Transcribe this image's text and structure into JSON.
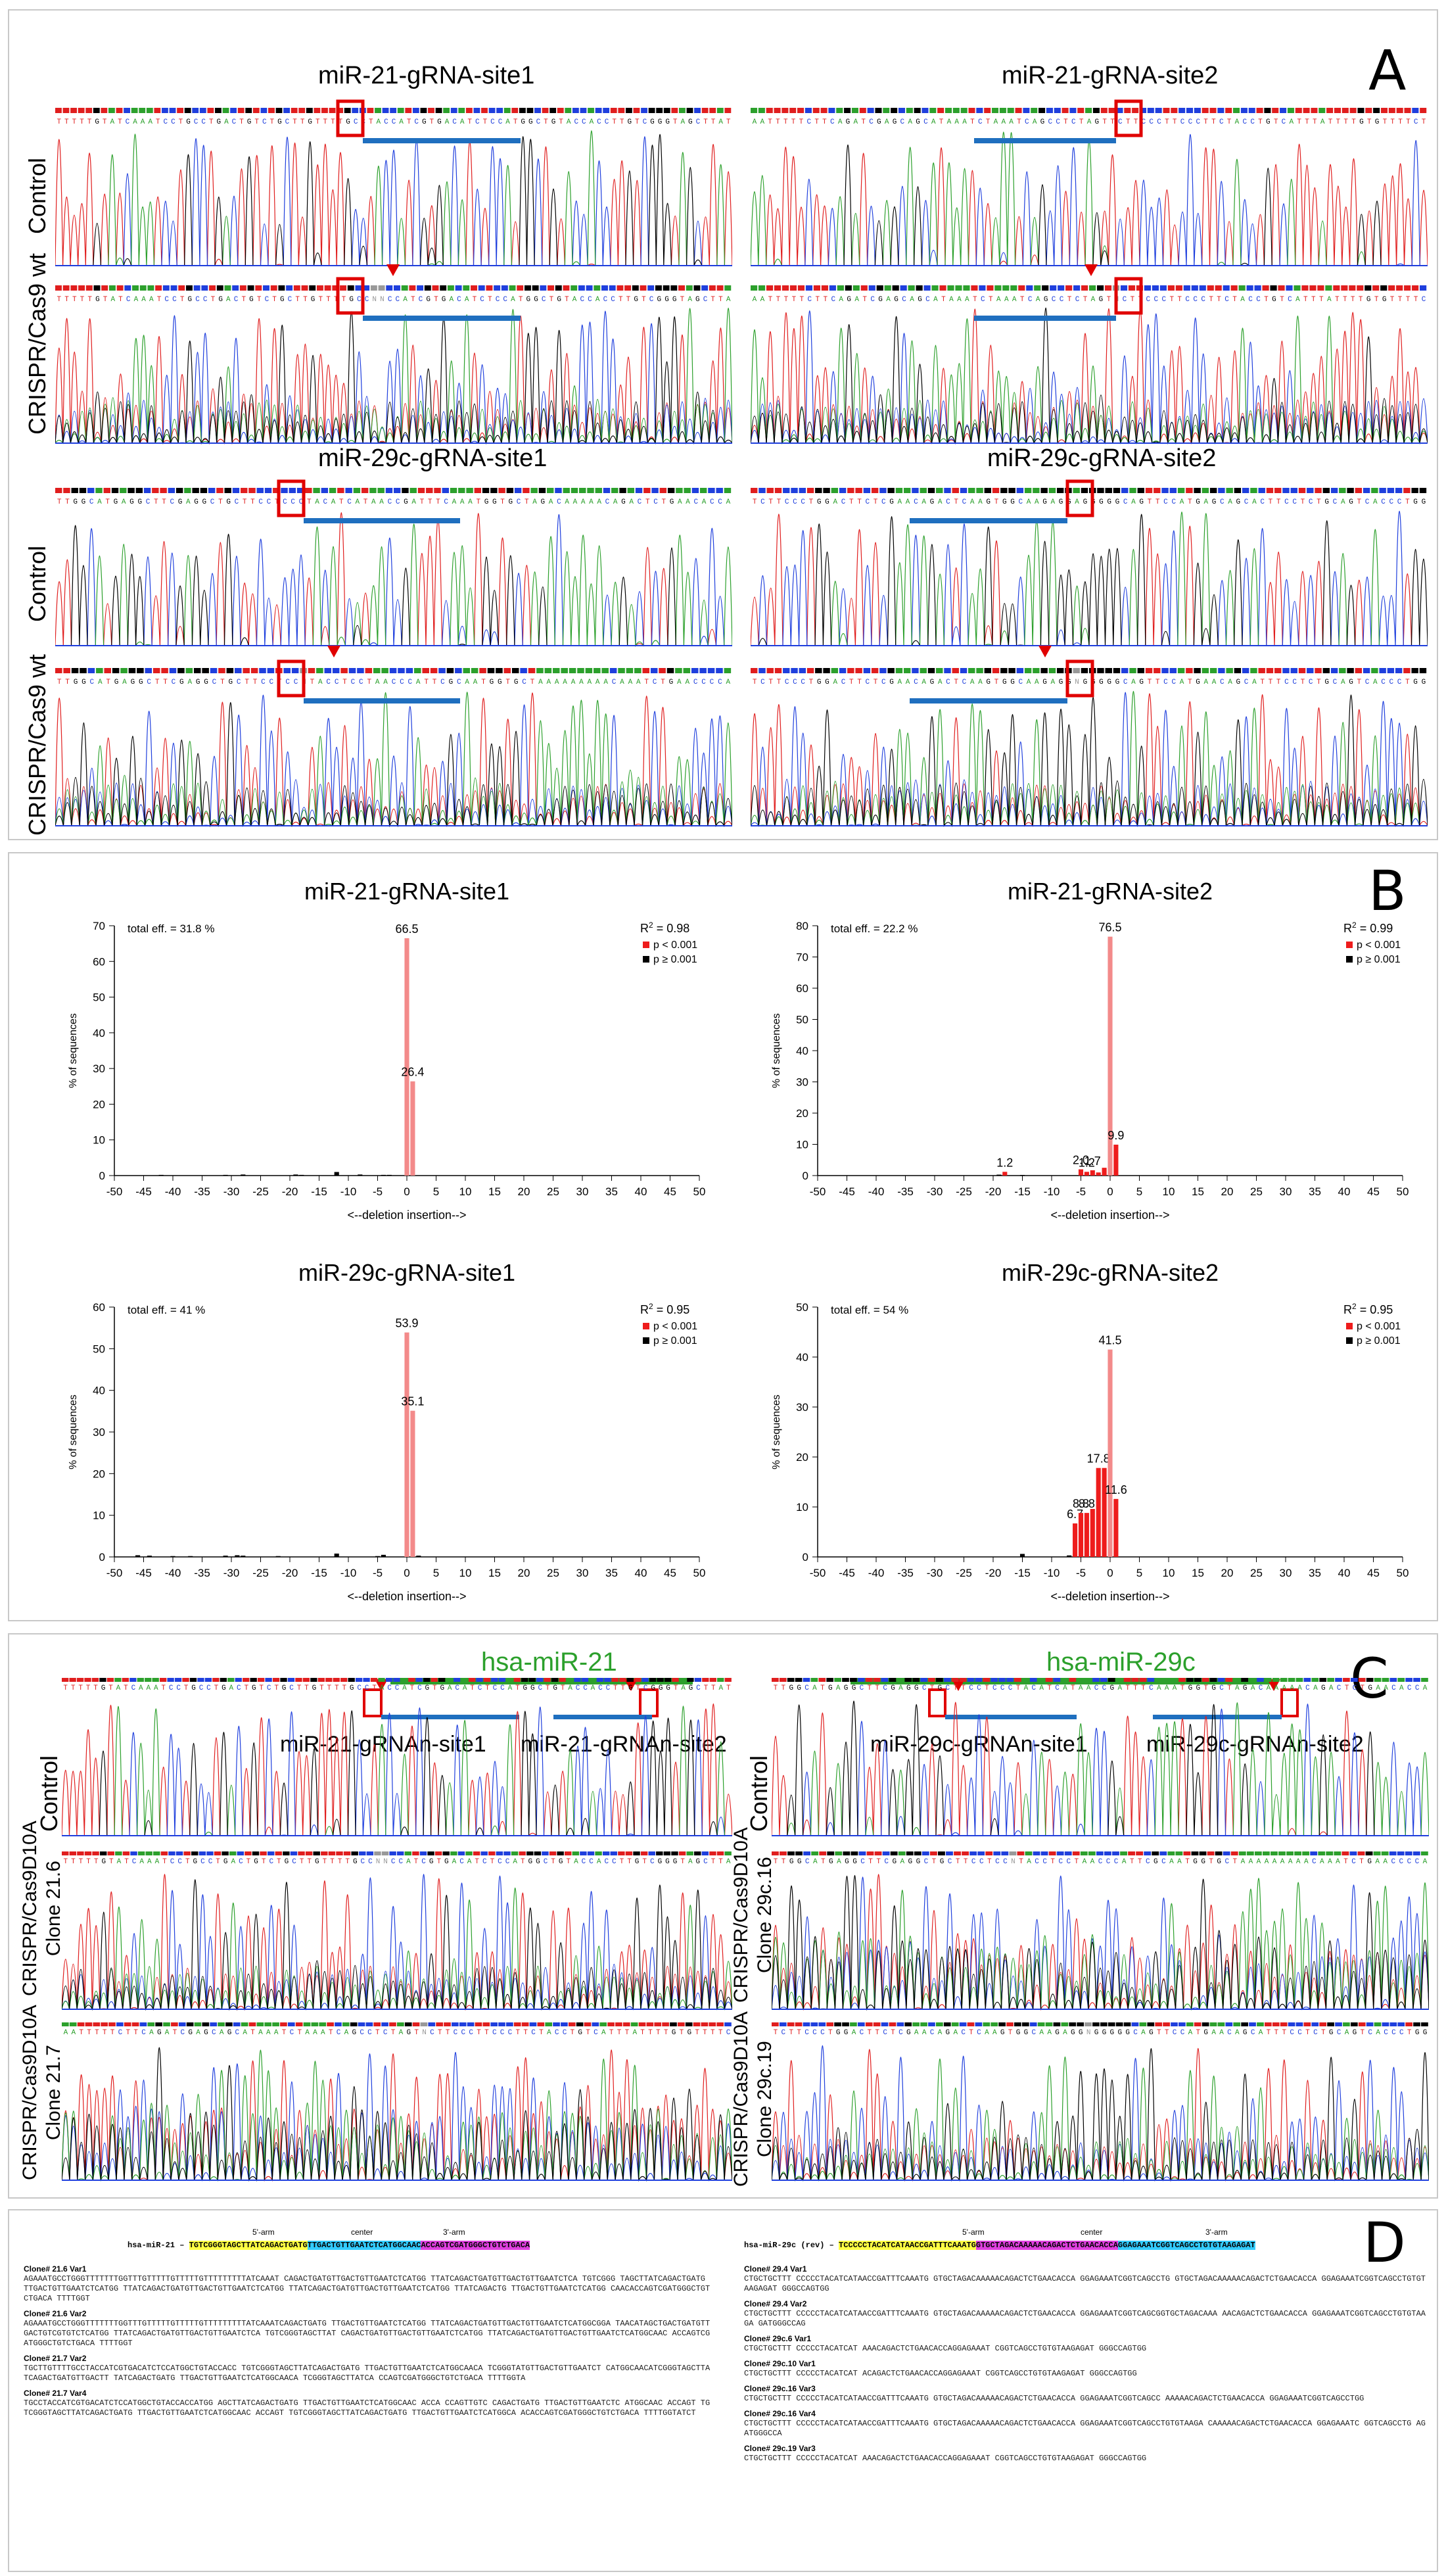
{
  "panel_a": {
    "letter": "A",
    "sites": [
      {
        "title": "miR-21-gRNA-site1"
      },
      {
        "title": "miR-21-gRNA-site2"
      },
      {
        "title": "miR-29c-gRNA-site1"
      },
      {
        "title": "miR-29c-gRNA-site2"
      }
    ],
    "row_labels": {
      "control": "Control",
      "crispr": "CRISPR/Cas9 wt"
    },
    "seq_top_1": "TTTTTGTATCAAATCCTGCCTGACTGTCTGCTTGTTTTGCCTACCATCGTGACATCTCCATGGCTGTACCACCTTGTCGGGTAGCTTAT",
    "seq_top_2": "AATTTTTCTTCAGATCGAGCAGCATAAATCTAAATCAGCCTCTAGTTCTTCCCTTCCCTTCTACCTGTCATTTATTTTGTGTTTTCT",
    "seq_top_3": "TTGGCATGAGGCTTCGAGGCTGCTTCCTCCCTACATCATAACCGATTTCAAATGGTGCTAGACAAAAACAGACTCTGAACACCA",
    "seq_top_4": "TCTTCCCTGGACTTCTCGAACAGACTCAAGTGGCAAGAGGAGGGGGCAGTTCCATGAGCAGCACTTCCTCTGCAGTCACCCTGG",
    "seq_bot_1": "TTTTTGTATCAAATCCTGCCTGACTGTCTGCTTGTTTTGCCNNCCATCGTGACATCTCCATGGCTGTACCACCTTGTCGGGTAGCTTA",
    "seq_bot_2": "AATTTTTCTTCAGATCGAGCAGCATAAATCTAAATCAGCCTCTAGTNCTTCCCTTCCCTTCTACCTGTCATTTATTTTGTGTTTTC",
    "seq_bot_3": "TTGGCATGAGGCTTCGAGGCTGCTTCCTCCNTACCTCCTAACCCATTCGCAATGGTGCTAAAAAAAAACAAATCTGAACCCCA",
    "seq_bot_4": "TCTTCCCTGGACTTCTCGAACAGACTCAAGTGGCAAGAGGNGGGGGCAGTTCCATGAACAGCATTTCCTCTGCAGTCACCCTGG"
  },
  "panel_b": {
    "letter": "B",
    "y_axis_label": "% of sequences",
    "x_axis_label": "<--deletion    insertion-->",
    "legend_r2_prefix": "R",
    "legend_r2_sup": "2",
    "legend_p1": "p < 0.001",
    "legend_p2": "p ≥ 0.001",
    "colors": {
      "sig": "#ee1c1c",
      "sig_light": "#f38a8a",
      "nonsig": "#000000"
    },
    "eff_1": "total eff. = 31.8 %",
    "eff_2": "total eff. = 22.2 %",
    "eff_3": "total eff. = 41 %",
    "eff_4": "total eff. = 54 %",
    "r2_1": " = 0.98",
    "r2_2": " = 0.99",
    "r2_3": " = 0.95",
    "r2_4": " = 0.95"
  },
  "chart_data": [
    {
      "type": "bar",
      "title": "miR-21-gRNA-site1",
      "xlabel": "<--deletion    insertion-->",
      "ylabel": "% of sequences",
      "xlim": [
        -50,
        50
      ],
      "ylim": [
        0,
        70
      ],
      "x_ticks": [
        -50,
        -45,
        -40,
        -35,
        -30,
        -25,
        -20,
        -15,
        -10,
        -5,
        0,
        5,
        10,
        15,
        20,
        25,
        30,
        35,
        40,
        45,
        50
      ],
      "y_ticks": [
        0,
        10,
        20,
        30,
        40,
        50,
        60,
        70
      ],
      "annotations": [
        "total eff. = 31.8 %",
        "R² = 0.98"
      ],
      "series": [
        {
          "name": "p < 0.001",
          "x": [
            0,
            1
          ],
          "values": [
            66.5,
            26.4
          ],
          "labels": [
            "66.5",
            "26.4"
          ]
        },
        {
          "name": "p ≥ 0.001",
          "x": [
            -42,
            -31,
            -28,
            -19,
            -18,
            -12,
            -8,
            -4,
            -3
          ],
          "values": [
            0.2,
            0.2,
            0.3,
            0.3,
            0.2,
            1.0,
            0.3,
            0.2,
            0.2
          ],
          "labels": []
        }
      ]
    },
    {
      "type": "bar",
      "title": "miR-21-gRNA-site2",
      "xlabel": "<--deletion    insertion-->",
      "ylabel": "% of sequences",
      "xlim": [
        -50,
        50
      ],
      "ylim": [
        0,
        80
      ],
      "x_ticks": [
        -50,
        -45,
        -40,
        -35,
        -30,
        -25,
        -20,
        -15,
        -10,
        -5,
        0,
        5,
        10,
        15,
        20,
        25,
        30,
        35,
        40,
        45,
        50
      ],
      "y_ticks": [
        0,
        10,
        20,
        30,
        40,
        50,
        60,
        70,
        80
      ],
      "annotations": [
        "total eff. = 22.2 %",
        "R² = 0.99"
      ],
      "series": [
        {
          "name": "p < 0.001",
          "x": [
            -18,
            -5,
            -4,
            -3,
            -2,
            -1,
            0,
            1
          ],
          "values": [
            1.2,
            2.0,
            1.2,
            1.7,
            1.0,
            2.5,
            76.5,
            9.9
          ],
          "labels": [
            "1.2",
            "2.0",
            "1.2",
            "1.7",
            "",
            "",
            "76.5",
            "9.9"
          ]
        },
        {
          "name": "p ≥ 0.001",
          "x": [
            -19,
            -15
          ],
          "values": [
            0.3,
            0.2
          ],
          "labels": []
        }
      ]
    },
    {
      "type": "bar",
      "title": "miR-29c-gRNA-site1",
      "xlabel": "<--deletion    insertion-->",
      "ylabel": "% of sequences",
      "xlim": [
        -50,
        50
      ],
      "ylim": [
        0,
        60
      ],
      "x_ticks": [
        -50,
        -45,
        -40,
        -35,
        -30,
        -25,
        -20,
        -15,
        -10,
        -5,
        0,
        5,
        10,
        15,
        20,
        25,
        30,
        35,
        40,
        45,
        50
      ],
      "y_ticks": [
        0,
        10,
        20,
        30,
        40,
        50,
        60
      ],
      "annotations": [
        "total eff. = 41 %",
        "R² = 0.95"
      ],
      "series": [
        {
          "name": "p < 0.001",
          "x": [
            0,
            1
          ],
          "values": [
            53.9,
            35.1
          ],
          "labels": [
            "53.9",
            "35.1"
          ]
        },
        {
          "name": "p ≥ 0.001",
          "x": [
            -46,
            -44,
            -40,
            -37,
            -31,
            -29,
            -28,
            -22,
            -12,
            -5,
            -4,
            2
          ],
          "values": [
            0.4,
            0.3,
            0.2,
            0.2,
            0.3,
            0.4,
            0.3,
            0.2,
            0.8,
            0.2,
            0.5,
            0.3
          ],
          "labels": []
        }
      ]
    },
    {
      "type": "bar",
      "title": "miR-29c-gRNA-site2",
      "xlabel": "<--deletion    insertion-->",
      "ylabel": "% of sequences",
      "xlim": [
        -50,
        50
      ],
      "ylim": [
        0,
        50
      ],
      "x_ticks": [
        -50,
        -45,
        -40,
        -35,
        -30,
        -25,
        -20,
        -15,
        -10,
        -5,
        0,
        5,
        10,
        15,
        20,
        25,
        30,
        35,
        40,
        45,
        50
      ],
      "y_ticks": [
        0,
        10,
        20,
        30,
        40,
        50
      ],
      "annotations": [
        "total eff. = 54 %",
        "R² = 0.95"
      ],
      "series": [
        {
          "name": "p < 0.001",
          "x": [
            -6,
            -5,
            -4,
            -3,
            -2,
            -1,
            0,
            1
          ],
          "values": [
            6.7,
            8.8,
            8.8,
            9.6,
            17.8,
            17.8,
            41.5,
            11.6
          ],
          "labels": [
            "6.7",
            "8.8",
            "8.8",
            "",
            "17.8",
            "",
            "41.5",
            "11.6"
          ]
        },
        {
          "name": "p ≥ 0.001",
          "x": [
            -15,
            -7
          ],
          "values": [
            0.6,
            0.3
          ],
          "labels": []
        }
      ]
    }
  ],
  "panel_c": {
    "letter": "C",
    "left": {
      "gene": "hsa-miR-21",
      "site1": "miR-21-gRNAn-site1",
      "site2": "miR-21-gRNAn-site2",
      "row1": "Control",
      "row2_a": "CRISPR/Cas9D10A",
      "row2_b": "Clone 21.6",
      "row3_a": "CRISPR/Cas9D10A",
      "row3_b": "Clone 21.7"
    },
    "right": {
      "gene": "hsa-miR-29c",
      "site1": "miR-29c-gRNAn-site1",
      "site2": "miR-29c-gRNAn-site2",
      "row1": "Control",
      "row2_a": "CRISPR/Cas9D10A",
      "row2_b": "Clone 29c.16",
      "row3_a": "CRISPR/Cas9D10A",
      "row3_b": "Clone 29c.19"
    },
    "gene_color": "#2ca02c"
  },
  "panel_d": {
    "letter": "D",
    "left": {
      "ref_name": "hsa-miR-21",
      "arm5": "5'-arm",
      "center": "center",
      "arm3": "3'-arm",
      "ref_seq_y": "TGTCGGGTAGCTTATCAGACTGATG",
      "ref_seq_c": "TTGACTGTTGAATCTCATGGCAAC",
      "ref_seq_m": "ACCAGTCGATGGGCTGTCTGACA",
      "clones": [
        {
          "name": "Clone# 21.6 Var1",
          "seq": "AGAAATGCCTGGGTTTTTTTGGTTTGTTTTTGTTTTTGTTTTTTTTTATCAAAT CAGACTGATGTTGACTGTTGAATCTCATGG TTATCAGACTGATGTTGACTGTTGAATCTCA TGTCGGG TAGCTTATCAGACTGATG TTGACTGTTGAATCTCATGG TTATCAGACTGATGTTGACTGTTGAATCTCATGG TTATCAGACTGATGTTGACTGTTGAATCTCATGG TTATCAGACTG TTGACTGTTGAATCTCATGG CAACACCAGTCGATGGGCTGTCTGACA TTTTGGT"
        },
        {
          "name": "Clone# 21.6 Var2",
          "seq": "AGAAATGCCTGGGTTTTTTTGGTTTGTTTTTGTTTTTGTTTTTTTTTATCAAATCAGACTGATG TTGACTGTTGAATCTCATGG TTATCAGACTGATGTTGACTGTTGAATCTCATGGCGGA TAACATAGCTGACTGATGTTGACTGTCGTGTCTCATGG TTATCAGACTGATGTTGACTGTTGAATCTCA TGTCGGGTAGCTTAT CAGACTGATGTTGACTGTTGAATCTCATGG TTATCAGACTGATGTTGACTGTTGAATCTCATGGCAAC ACCAGTCGATGGGCTGTCTGACA TTTTGGT"
        },
        {
          "name": "Clone# 21.7 Var2",
          "seq": "TGCTTGTTTTGCCTACCATCGTGACATCTCCATGGCTGTACCACC TGTCGGGTAGCTTATCAGACTGATG TTGACTGTTGAATCTCATGGCAACA TCGGGTATGTTGACTGTTGAATCT CATGGCAACATCGGGTAGCTTATCAGACTGATGTTGACTT TATCAGACTGATG TTGACTGTTGAATCTCATGGCAACA TCGGGTAGCTTATCA CCAGTCGATGGGCTGTCTGACA TTTTGGTA"
        },
        {
          "name": "Clone# 21.7 Var4",
          "seq": "TGCCTACCATCGTGACATCTCCATGGCTGTACCACCATGG AGCTTATCAGACTGATG TTGACTGTTGAATCTCATGGCAAC ACCA CCAGTTGTC CAGACTGATG TTGACTGTTGAATCTC ATGGCAAC ACCAGT TGTCGGGTAGCTTATCAGACTGATG TTGACTGTTGAATCTCATGGCAAC ACCAGT TGTCGGGTAGCTTATCAGACTGATG TTGACTGTTGAATCTCATGGCA ACACCAGTCGATGGGCTGTCTGACA TTTTGGTATCT"
        }
      ]
    },
    "right": {
      "ref_name": "hsa-miR-29c (rev)",
      "arm5": "5'-arm",
      "center": "center",
      "arm3": "3'-arm",
      "ref_seq_y": "TCCCCCTACATCATAACCGATTTCAAATG",
      "ref_seq_m": "GTGCTAGACAAAAACAGACTCTGAACACCA",
      "ref_seq_c": "GGAGAAATCGGTCAGCCTGTGTAAGAGAT",
      "clones": [
        {
          "name": "Clone# 29.4 Var1",
          "seq": "CTGCTGCTTT CCCCCTACATCATAACCGATTTCAAATG GTGCTAGACAAAAACAGACTCTGAACACCA GGAGAAATCGGTCAGCCTG GTGCTAGACAAAAACAGACTCTGAACACCA GGAGAAATCGGTCAGCCTGTGTAAGAGAT GGGCCAGTGG"
        },
        {
          "name": "Clone# 29.4 Var2",
          "seq": "CTGCTGCTTT CCCCCTACATCATAACCGATTTCAAATG GTGCTAGACAAAAACAGACTCTGAACACCA GGAGAAATCGGTCAGCGGTGCTAGACAAA AACAGACTCTGAACACCA GGAGAAATCGGTCAGCCTGTGTAAGA GATGGGCCAG"
        },
        {
          "name": "Clone# 29c.6 Var1",
          "seq": "CTGCTGCTTT CCCCCTACATCAT AAACAGACTCTGAACACCAGGAGAAAT CGGTCAGCCTGTGTAAGAGAT GGGCCAGTGG"
        },
        {
          "name": "Clone# 29c.10 Var1",
          "seq": "CTGCTGCTTT CCCCCTACATCAT ACAGACTCTGAACACCAGGAGAAAT CGGTCAGCCTGTGTAAGAGAT GGGCCAGTGG"
        },
        {
          "name": "Clone# 29c.16 Var3",
          "seq": "CTGCTGCTTT CCCCCTACATCATAACCGATTTCAAATG GTGCTAGACAAAAACAGACTCTGAACACCA GGAGAAATCGGTCAGCC AAAAACAGACTCTGAACACCA GGAGAAATCGGTCAGCCTGG"
        },
        {
          "name": "Clone# 29c.16 Var4",
          "seq": "CTGCTGCTTT CCCCCTACATCATAACCGATTTCAAATG GTGCTAGACAAAAACAGACTCTGAACACCA GGAGAAATCGGTCAGCCTGTGTAAGA CAAAAACAGACTCTGAACACCA GGAGAAATC GGTCAGCCTG AGATGGGCCA"
        },
        {
          "name": "Clone# 29c.19 Var3",
          "seq": "CTGCTGCTTT CCCCCTACATCAT AAACAGACTCTGAACACCAGGAGAAAT CGGTCAGCCTGTGTAAGAGAT GGGCCAGTGG"
        }
      ]
    },
    "colors": {
      "yellow": "#ffff44",
      "cyan": "#33ccff",
      "magenta": "#e040e0"
    }
  }
}
